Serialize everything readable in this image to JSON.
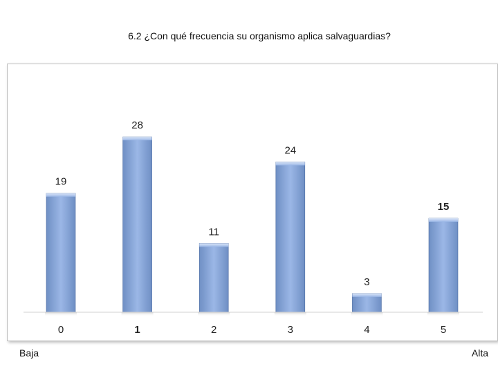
{
  "chart_data": {
    "type": "bar",
    "title": "6.2 ¿Con qué frecuencia su organismo aplica salvaguardias?",
    "categories": [
      "0",
      "1",
      "2",
      "3",
      "4",
      "5"
    ],
    "values": [
      19,
      28,
      11,
      24,
      3,
      15
    ],
    "ylim": [
      0,
      30
    ],
    "grid": false,
    "axis_end_labels": {
      "low": "Baja",
      "high": "Alta"
    },
    "colors": {
      "bar_top": "#b7cdf0",
      "bar_mid": "#8eaee2",
      "bar_bottom": "#6f8fc4",
      "bar_edge": "#4a6aa0"
    }
  }
}
